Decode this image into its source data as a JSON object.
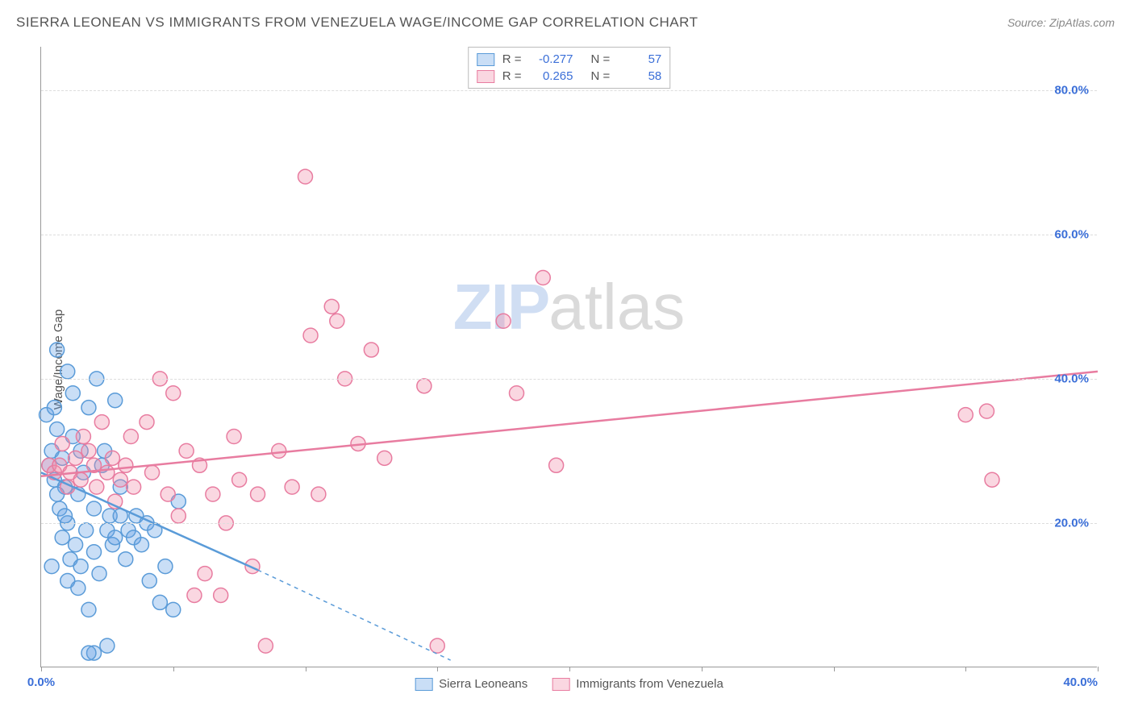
{
  "title": "SIERRA LEONEAN VS IMMIGRANTS FROM VENEZUELA WAGE/INCOME GAP CORRELATION CHART",
  "source": "Source: ZipAtlas.com",
  "ylabel": "Wage/Income Gap",
  "watermark": {
    "part1": "ZIP",
    "part2": "atlas"
  },
  "chart": {
    "type": "scatter",
    "xlim": [
      0,
      40
    ],
    "ylim": [
      0,
      86
    ],
    "background_color": "#ffffff",
    "grid_color": "#dddddd",
    "axis_color": "#999999",
    "tick_label_color": "#3b6fd8",
    "tick_fontsize": 15,
    "marker_radius": 9,
    "marker_fill_opacity": 0.35,
    "marker_stroke_width": 1.5,
    "yticks": [
      20,
      40,
      60,
      80
    ],
    "ytick_labels": [
      "20.0%",
      "40.0%",
      "60.0%",
      "80.0%"
    ],
    "xticks": [
      0,
      5,
      10,
      15,
      20,
      25,
      30,
      35,
      40
    ],
    "xtick_labels_shown": {
      "0": "0.0%",
      "40": "40.0%"
    },
    "series": [
      {
        "id": "sierra",
        "label": "Sierra Leoneans",
        "color_fill": "rgba(100,160,230,0.35)",
        "color_stroke": "#5a9bd8",
        "r_value": "-0.277",
        "n_value": "57",
        "trend": {
          "x1": 0,
          "y1": 27,
          "x2": 8.2,
          "y2": 13.5,
          "x2_dash": 15.5,
          "y2_dash": 1
        },
        "points": [
          [
            0.2,
            35
          ],
          [
            0.3,
            28
          ],
          [
            0.4,
            30
          ],
          [
            0.5,
            36
          ],
          [
            0.5,
            26
          ],
          [
            0.6,
            33
          ],
          [
            0.7,
            22
          ],
          [
            0.8,
            29
          ],
          [
            0.8,
            18
          ],
          [
            0.9,
            25
          ],
          [
            1.0,
            41
          ],
          [
            1.0,
            20
          ],
          [
            1.1,
            15
          ],
          [
            1.2,
            32
          ],
          [
            1.2,
            38
          ],
          [
            1.3,
            17
          ],
          [
            1.4,
            24
          ],
          [
            1.5,
            30
          ],
          [
            1.5,
            14
          ],
          [
            1.6,
            27
          ],
          [
            1.7,
            19
          ],
          [
            1.8,
            36
          ],
          [
            1.8,
            8
          ],
          [
            2.0,
            22
          ],
          [
            2.0,
            16
          ],
          [
            2.1,
            40
          ],
          [
            2.2,
            13
          ],
          [
            2.3,
            28
          ],
          [
            2.4,
            30
          ],
          [
            2.5,
            19
          ],
          [
            2.6,
            21
          ],
          [
            2.7,
            17
          ],
          [
            2.8,
            37
          ],
          [
            2.8,
            18
          ],
          [
            3.0,
            21
          ],
          [
            3.0,
            25
          ],
          [
            3.2,
            15
          ],
          [
            3.3,
            19
          ],
          [
            3.5,
            18
          ],
          [
            3.6,
            21
          ],
          [
            3.8,
            17
          ],
          [
            4.0,
            20
          ],
          [
            4.1,
            12
          ],
          [
            4.3,
            19
          ],
          [
            4.5,
            9
          ],
          [
            4.7,
            14
          ],
          [
            5.0,
            8
          ],
          [
            5.2,
            23
          ],
          [
            2.0,
            2
          ],
          [
            0.6,
            44
          ],
          [
            1.8,
            2
          ],
          [
            2.5,
            3
          ],
          [
            1.0,
            12
          ],
          [
            1.4,
            11
          ],
          [
            0.4,
            14
          ],
          [
            0.6,
            24
          ],
          [
            0.9,
            21
          ]
        ]
      },
      {
        "id": "venezuela",
        "label": "Immigrants from Venezuela",
        "color_fill": "rgba(240,140,170,0.35)",
        "color_stroke": "#e87ca0",
        "r_value": "0.265",
        "n_value": "58",
        "trend": {
          "x1": 0,
          "y1": 26.5,
          "x2": 40,
          "y2": 41
        },
        "points": [
          [
            0.3,
            28
          ],
          [
            0.5,
            27
          ],
          [
            0.7,
            28
          ],
          [
            0.8,
            31
          ],
          [
            1.0,
            25
          ],
          [
            1.1,
            27
          ],
          [
            1.3,
            29
          ],
          [
            1.5,
            26
          ],
          [
            1.6,
            32
          ],
          [
            1.8,
            30
          ],
          [
            2.0,
            28
          ],
          [
            2.1,
            25
          ],
          [
            2.3,
            34
          ],
          [
            2.5,
            27
          ],
          [
            2.7,
            29
          ],
          [
            2.8,
            23
          ],
          [
            3.0,
            26
          ],
          [
            3.2,
            28
          ],
          [
            3.4,
            32
          ],
          [
            3.5,
            25
          ],
          [
            4.0,
            34
          ],
          [
            4.2,
            27
          ],
          [
            4.5,
            40
          ],
          [
            4.8,
            24
          ],
          [
            5.0,
            38
          ],
          [
            5.2,
            21
          ],
          [
            5.5,
            30
          ],
          [
            6.0,
            28
          ],
          [
            6.2,
            13
          ],
          [
            6.5,
            24
          ],
          [
            7.0,
            20
          ],
          [
            7.3,
            32
          ],
          [
            7.5,
            26
          ],
          [
            8.0,
            14
          ],
          [
            8.2,
            24
          ],
          [
            8.5,
            3
          ],
          [
            9.0,
            30
          ],
          [
            9.5,
            25
          ],
          [
            10.0,
            68
          ],
          [
            10.2,
            46
          ],
          [
            10.5,
            24
          ],
          [
            11.0,
            50
          ],
          [
            11.2,
            48
          ],
          [
            11.5,
            40
          ],
          [
            12.0,
            31
          ],
          [
            12.5,
            44
          ],
          [
            13.0,
            29
          ],
          [
            14.5,
            39
          ],
          [
            15.0,
            3
          ],
          [
            17.5,
            48
          ],
          [
            18.0,
            38
          ],
          [
            19.0,
            54
          ],
          [
            19.5,
            28
          ],
          [
            35.0,
            35
          ],
          [
            35.8,
            35.5
          ],
          [
            36.0,
            26
          ],
          [
            6.8,
            10
          ],
          [
            5.8,
            10
          ]
        ]
      }
    ]
  }
}
